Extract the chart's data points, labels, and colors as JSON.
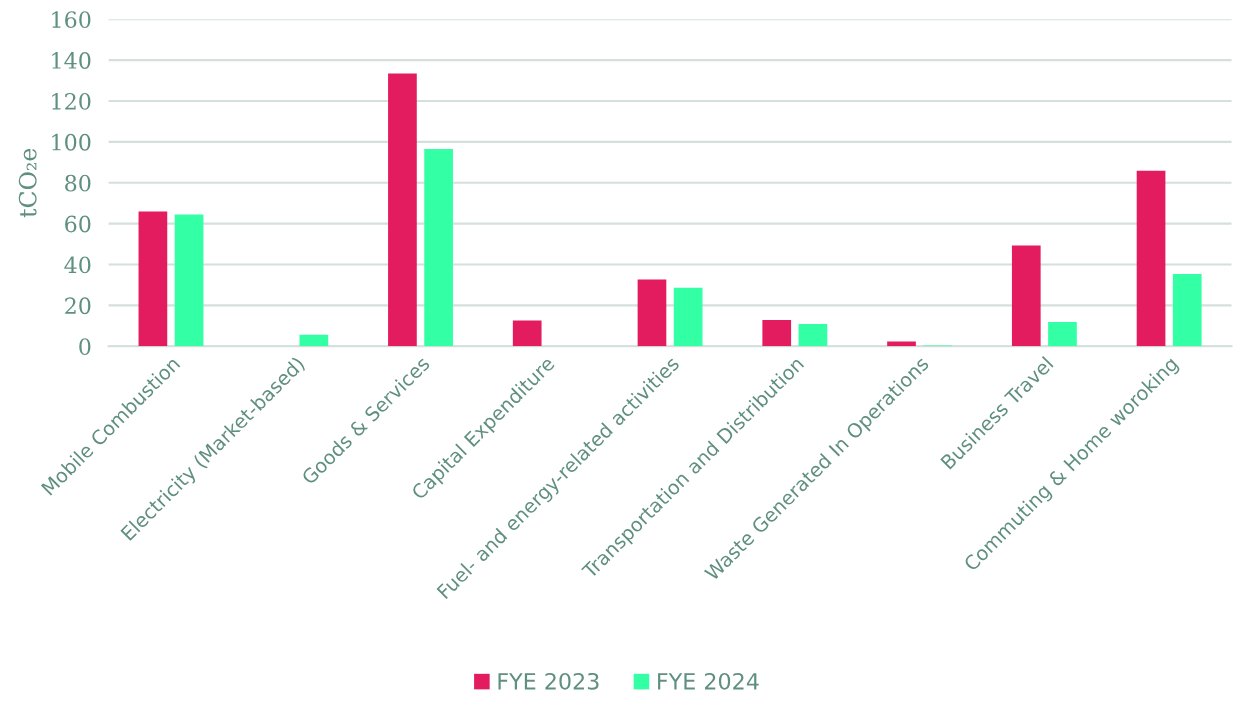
{
  "chart_data": {
    "type": "bar",
    "ylabel": "tCO₂e",
    "categories": [
      "Mobile Combustion",
      "Electricity (Market-based)",
      "Goods & Services",
      "Capital Expenditure",
      "Fuel- and energy-related activities",
      "Transportation and Distribution",
      "Waste Generated In Operations",
      "Business Travel",
      "Commuting & Home woroking"
    ],
    "series": [
      {
        "name": "FYE 2023",
        "color": "#e31b5f",
        "values": [
          66,
          null,
          133.5,
          12.6,
          32.7,
          12.9,
          2.4,
          49.3,
          85.9
        ]
      },
      {
        "name": "FYE 2024",
        "color": "#33ffa5",
        "values": [
          64.5,
          5.6,
          96.5,
          null,
          28.7,
          10.9,
          0.4,
          11.9,
          35.4
        ]
      }
    ],
    "ylim": [
      0,
      160
    ],
    "yticks": [
      0,
      20,
      40,
      60,
      80,
      100,
      120,
      140,
      160
    ],
    "grid": "y",
    "legend": "bottom"
  }
}
